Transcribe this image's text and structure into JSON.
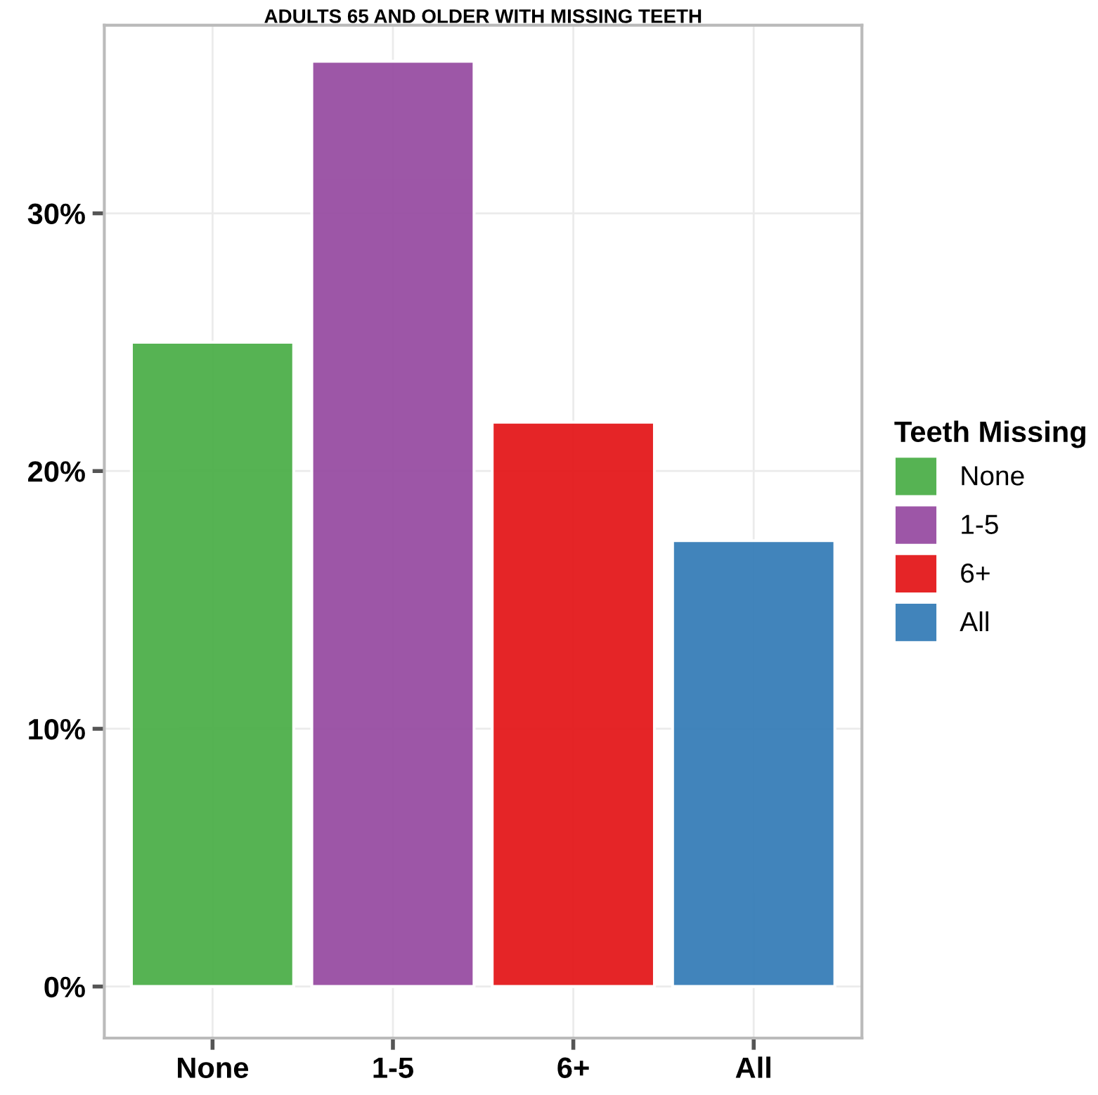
{
  "chart_data": {
    "type": "bar",
    "title": "ADULTS 65 AND OLDER WITH MISSING TEETH",
    "categories": [
      "None",
      "1-5",
      "6+",
      "All"
    ],
    "series": [
      {
        "name": "None",
        "color": "#4daf4a",
        "values": [
          25.0,
          null,
          null,
          null
        ]
      },
      {
        "name": "1-5",
        "color": "#984ea3",
        "values": [
          null,
          35.9,
          null,
          null
        ]
      },
      {
        "name": "6+",
        "color": "#e41a1c",
        "values": [
          null,
          null,
          21.9,
          null
        ]
      },
      {
        "name": "All",
        "color": "#377eb8",
        "values": [
          null,
          null,
          null,
          17.3
        ]
      }
    ],
    "ylim": [
      -2.0,
      37.3
    ],
    "yticks": [
      {
        "value": 0,
        "label": "0%"
      },
      {
        "value": 10,
        "label": "10%"
      },
      {
        "value": 20,
        "label": "20%"
      },
      {
        "value": 30,
        "label": "30%"
      }
    ],
    "grid": true,
    "legend": "right",
    "legend_title": "Teeth Missing"
  }
}
